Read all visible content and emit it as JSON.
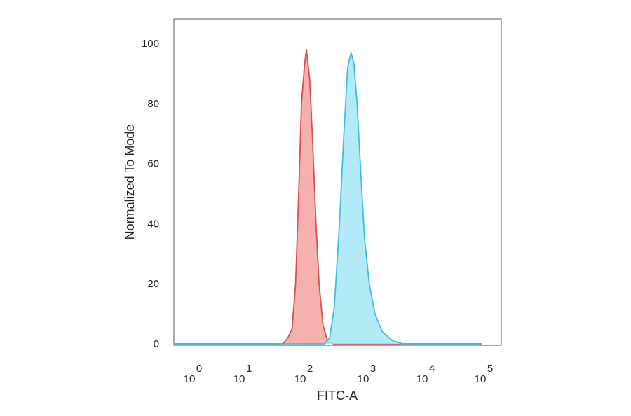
{
  "chart_data": {
    "type": "area",
    "xlabel": "FITC-A",
    "ylabel": "Normalized To Mode",
    "x_scale": "log",
    "xlim": [
      1,
      100000
    ],
    "ylim": [
      0,
      100
    ],
    "grid": false,
    "x_ticks": [
      {
        "base": "10",
        "exp": "0",
        "value": 1
      },
      {
        "base": "10",
        "exp": "1",
        "value": 10
      },
      {
        "base": "10",
        "exp": "2",
        "value": 100
      },
      {
        "base": "10",
        "exp": "3",
        "value": 1000
      },
      {
        "base": "10",
        "exp": "4",
        "value": 10000
      },
      {
        "base": "10",
        "exp": "5",
        "value": 100000
      }
    ],
    "y_ticks": [
      "0",
      "20",
      "40",
      "60",
      "80",
      "100"
    ],
    "series": [
      {
        "fill": "#f4a3a0",
        "stroke": "#d9504c",
        "points": [
          [
            0.01,
            0
          ],
          [
            50,
            0
          ],
          [
            60,
            2
          ],
          [
            70,
            5
          ],
          [
            80,
            20
          ],
          [
            90,
            50
          ],
          [
            100,
            80
          ],
          [
            112,
            93
          ],
          [
            120,
            98
          ],
          [
            135,
            88
          ],
          [
            150,
            68
          ],
          [
            170,
            40
          ],
          [
            190,
            20
          ],
          [
            220,
            6
          ],
          [
            260,
            1
          ],
          [
            320,
            0
          ],
          [
            100000,
            0
          ]
        ]
      },
      {
        "fill": "#a6e6f6",
        "stroke": "#3cbfe0",
        "points": [
          [
            0.01,
            0
          ],
          [
            230,
            0
          ],
          [
            280,
            2
          ],
          [
            330,
            12
          ],
          [
            400,
            40
          ],
          [
            470,
            70
          ],
          [
            540,
            92
          ],
          [
            610,
            97
          ],
          [
            680,
            93
          ],
          [
            760,
            80
          ],
          [
            880,
            55
          ],
          [
            1000,
            35
          ],
          [
            1200,
            20
          ],
          [
            1500,
            10
          ],
          [
            2000,
            4
          ],
          [
            3000,
            1
          ],
          [
            4500,
            0
          ],
          [
            100000,
            0
          ]
        ]
      }
    ]
  }
}
